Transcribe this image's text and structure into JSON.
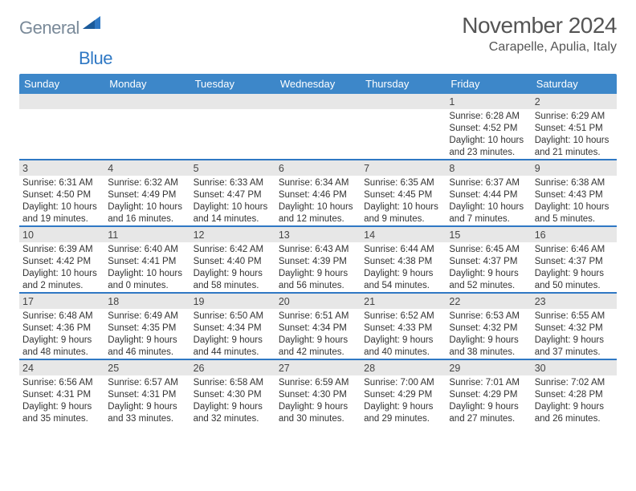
{
  "logo": {
    "general": "General",
    "blue": "Blue"
  },
  "title": {
    "month_year": "November 2024",
    "location": "Carapelle, Apulia, Italy"
  },
  "colors": {
    "header_bg": "#3d87c9",
    "header_text": "#ffffff",
    "daynum_bg": "#e7e7e7",
    "row_divider": "#2f78c4",
    "logo_general": "#7a8a99",
    "logo_blue": "#2f78c4",
    "body_text": "#333333",
    "title_text": "#555555"
  },
  "weekdays": [
    "Sunday",
    "Monday",
    "Tuesday",
    "Wednesday",
    "Thursday",
    "Friday",
    "Saturday"
  ],
  "weeks": [
    [
      null,
      null,
      null,
      null,
      null,
      {
        "n": "1",
        "sr": "Sunrise: 6:28 AM",
        "ss": "Sunset: 4:52 PM",
        "dl": "Daylight: 10 hours and 23 minutes."
      },
      {
        "n": "2",
        "sr": "Sunrise: 6:29 AM",
        "ss": "Sunset: 4:51 PM",
        "dl": "Daylight: 10 hours and 21 minutes."
      }
    ],
    [
      {
        "n": "3",
        "sr": "Sunrise: 6:31 AM",
        "ss": "Sunset: 4:50 PM",
        "dl": "Daylight: 10 hours and 19 minutes."
      },
      {
        "n": "4",
        "sr": "Sunrise: 6:32 AM",
        "ss": "Sunset: 4:49 PM",
        "dl": "Daylight: 10 hours and 16 minutes."
      },
      {
        "n": "5",
        "sr": "Sunrise: 6:33 AM",
        "ss": "Sunset: 4:47 PM",
        "dl": "Daylight: 10 hours and 14 minutes."
      },
      {
        "n": "6",
        "sr": "Sunrise: 6:34 AM",
        "ss": "Sunset: 4:46 PM",
        "dl": "Daylight: 10 hours and 12 minutes."
      },
      {
        "n": "7",
        "sr": "Sunrise: 6:35 AM",
        "ss": "Sunset: 4:45 PM",
        "dl": "Daylight: 10 hours and 9 minutes."
      },
      {
        "n": "8",
        "sr": "Sunrise: 6:37 AM",
        "ss": "Sunset: 4:44 PM",
        "dl": "Daylight: 10 hours and 7 minutes."
      },
      {
        "n": "9",
        "sr": "Sunrise: 6:38 AM",
        "ss": "Sunset: 4:43 PM",
        "dl": "Daylight: 10 hours and 5 minutes."
      }
    ],
    [
      {
        "n": "10",
        "sr": "Sunrise: 6:39 AM",
        "ss": "Sunset: 4:42 PM",
        "dl": "Daylight: 10 hours and 2 minutes."
      },
      {
        "n": "11",
        "sr": "Sunrise: 6:40 AM",
        "ss": "Sunset: 4:41 PM",
        "dl": "Daylight: 10 hours and 0 minutes."
      },
      {
        "n": "12",
        "sr": "Sunrise: 6:42 AM",
        "ss": "Sunset: 4:40 PM",
        "dl": "Daylight: 9 hours and 58 minutes."
      },
      {
        "n": "13",
        "sr": "Sunrise: 6:43 AM",
        "ss": "Sunset: 4:39 PM",
        "dl": "Daylight: 9 hours and 56 minutes."
      },
      {
        "n": "14",
        "sr": "Sunrise: 6:44 AM",
        "ss": "Sunset: 4:38 PM",
        "dl": "Daylight: 9 hours and 54 minutes."
      },
      {
        "n": "15",
        "sr": "Sunrise: 6:45 AM",
        "ss": "Sunset: 4:37 PM",
        "dl": "Daylight: 9 hours and 52 minutes."
      },
      {
        "n": "16",
        "sr": "Sunrise: 6:46 AM",
        "ss": "Sunset: 4:37 PM",
        "dl": "Daylight: 9 hours and 50 minutes."
      }
    ],
    [
      {
        "n": "17",
        "sr": "Sunrise: 6:48 AM",
        "ss": "Sunset: 4:36 PM",
        "dl": "Daylight: 9 hours and 48 minutes."
      },
      {
        "n": "18",
        "sr": "Sunrise: 6:49 AM",
        "ss": "Sunset: 4:35 PM",
        "dl": "Daylight: 9 hours and 46 minutes."
      },
      {
        "n": "19",
        "sr": "Sunrise: 6:50 AM",
        "ss": "Sunset: 4:34 PM",
        "dl": "Daylight: 9 hours and 44 minutes."
      },
      {
        "n": "20",
        "sr": "Sunrise: 6:51 AM",
        "ss": "Sunset: 4:34 PM",
        "dl": "Daylight: 9 hours and 42 minutes."
      },
      {
        "n": "21",
        "sr": "Sunrise: 6:52 AM",
        "ss": "Sunset: 4:33 PM",
        "dl": "Daylight: 9 hours and 40 minutes."
      },
      {
        "n": "22",
        "sr": "Sunrise: 6:53 AM",
        "ss": "Sunset: 4:32 PM",
        "dl": "Daylight: 9 hours and 38 minutes."
      },
      {
        "n": "23",
        "sr": "Sunrise: 6:55 AM",
        "ss": "Sunset: 4:32 PM",
        "dl": "Daylight: 9 hours and 37 minutes."
      }
    ],
    [
      {
        "n": "24",
        "sr": "Sunrise: 6:56 AM",
        "ss": "Sunset: 4:31 PM",
        "dl": "Daylight: 9 hours and 35 minutes."
      },
      {
        "n": "25",
        "sr": "Sunrise: 6:57 AM",
        "ss": "Sunset: 4:31 PM",
        "dl": "Daylight: 9 hours and 33 minutes."
      },
      {
        "n": "26",
        "sr": "Sunrise: 6:58 AM",
        "ss": "Sunset: 4:30 PM",
        "dl": "Daylight: 9 hours and 32 minutes."
      },
      {
        "n": "27",
        "sr": "Sunrise: 6:59 AM",
        "ss": "Sunset: 4:30 PM",
        "dl": "Daylight: 9 hours and 30 minutes."
      },
      {
        "n": "28",
        "sr": "Sunrise: 7:00 AM",
        "ss": "Sunset: 4:29 PM",
        "dl": "Daylight: 9 hours and 29 minutes."
      },
      {
        "n": "29",
        "sr": "Sunrise: 7:01 AM",
        "ss": "Sunset: 4:29 PM",
        "dl": "Daylight: 9 hours and 27 minutes."
      },
      {
        "n": "30",
        "sr": "Sunrise: 7:02 AM",
        "ss": "Sunset: 4:28 PM",
        "dl": "Daylight: 9 hours and 26 minutes."
      }
    ]
  ]
}
